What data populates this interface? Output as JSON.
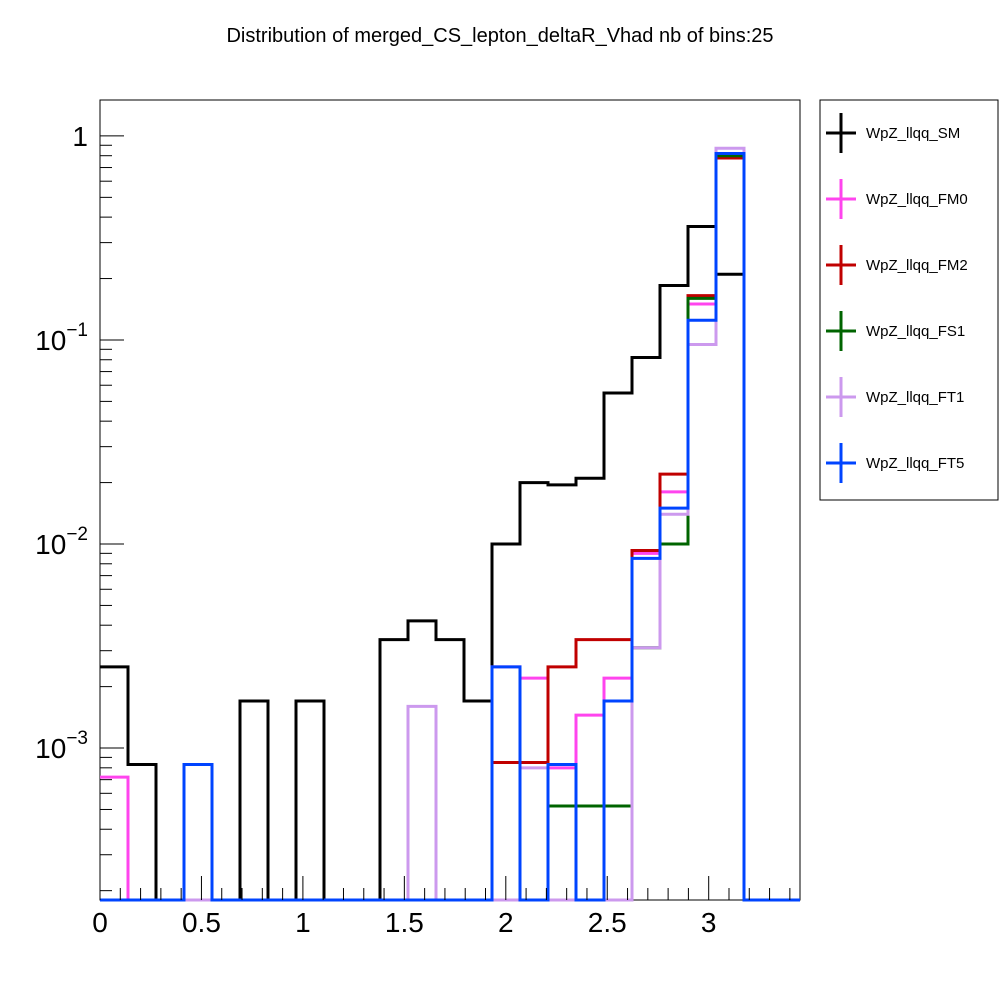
{
  "chart_data": {
    "type": "step-histogram",
    "title": "Distribution of merged_CS_lepton_deltaR_Vhad nb of bins:25",
    "xlabel": "",
    "ylabel": "",
    "xlim": [
      0,
      3.45
    ],
    "ylim": [
      0.00018,
      1.5
    ],
    "yscale": "log",
    "bin_edges": [
      0,
      0.138,
      0.276,
      0.414,
      0.552,
      0.69,
      0.828,
      0.966,
      1.104,
      1.242,
      1.38,
      1.518,
      1.656,
      1.794,
      1.932,
      2.07,
      2.208,
      2.346,
      2.484,
      2.622,
      2.76,
      2.898,
      3.036,
      3.174,
      3.312,
      3.45
    ],
    "x_ticks": [
      {
        "value": 0,
        "label": "0"
      },
      {
        "value": 0.5,
        "label": "0.5"
      },
      {
        "value": 1,
        "label": "1"
      },
      {
        "value": 1.5,
        "label": "1.5"
      },
      {
        "value": 2,
        "label": "2"
      },
      {
        "value": 2.5,
        "label": "2.5"
      },
      {
        "value": 3,
        "label": "3"
      }
    ],
    "y_ticks": [
      {
        "value": 1,
        "base": "1",
        "exp": ""
      },
      {
        "value": 0.1,
        "base": "10",
        "exp": "−1"
      },
      {
        "value": 0.01,
        "base": "10",
        "exp": "−2"
      },
      {
        "value": 0.001,
        "base": "10",
        "exp": "−3"
      }
    ],
    "legend_position": "right",
    "series": [
      {
        "name": "WpZ_llqq_SM",
        "color": "#000000",
        "values": [
          0.0025,
          0.00083,
          0,
          0,
          0,
          0.0017,
          0,
          0.0017,
          0,
          0,
          0.0034,
          0.0042,
          0.0034,
          0.0017,
          0.01,
          0.02,
          0.0195,
          0.021,
          0.055,
          0.082,
          0.185,
          0.36,
          0.21,
          0,
          0
        ]
      },
      {
        "name": "WpZ_llqq_FM0",
        "color": "#ff44ee",
        "values": [
          0.00072,
          0,
          0,
          0,
          0,
          0,
          0,
          0,
          0,
          0,
          0,
          0,
          0,
          0,
          0.0025,
          0.0022,
          0.0008,
          0.00145,
          0.0022,
          0.009,
          0.018,
          0.15,
          0.8,
          0,
          0
        ]
      },
      {
        "name": "WpZ_llqq_FM2",
        "color": "#c00000",
        "values": [
          0,
          0,
          0,
          0,
          0,
          0,
          0,
          0,
          0,
          0,
          0,
          0,
          0,
          0,
          0.00085,
          0.00085,
          0.0025,
          0.0034,
          0.0034,
          0.0093,
          0.022,
          0.165,
          0.78,
          0,
          0
        ]
      },
      {
        "name": "WpZ_llqq_FS1",
        "color": "#006400",
        "values": [
          0,
          0,
          0,
          0,
          0,
          0,
          0,
          0,
          0,
          0,
          0,
          0,
          0,
          0,
          0,
          0,
          0.00052,
          0.00052,
          0.00052,
          0.0031,
          0.01,
          0.16,
          0.8,
          0,
          0
        ]
      },
      {
        "name": "WpZ_llqq_FT1",
        "color": "#cc99ee",
        "values": [
          0,
          0,
          0,
          0,
          0,
          0,
          0,
          0,
          0,
          0,
          0,
          0.0016,
          0,
          0,
          0,
          0.0008,
          0,
          0,
          0,
          0.0031,
          0.014,
          0.095,
          0.87,
          0,
          0
        ]
      },
      {
        "name": "WpZ_llqq_FT5",
        "color": "#0044ff",
        "values": [
          0,
          0,
          0,
          0.00083,
          0,
          0,
          0,
          0,
          0,
          0,
          0,
          0,
          0,
          0,
          0.0025,
          0,
          0.00083,
          0,
          0.0017,
          0.0085,
          0.015,
          0.125,
          0.82,
          0,
          0
        ]
      }
    ]
  }
}
